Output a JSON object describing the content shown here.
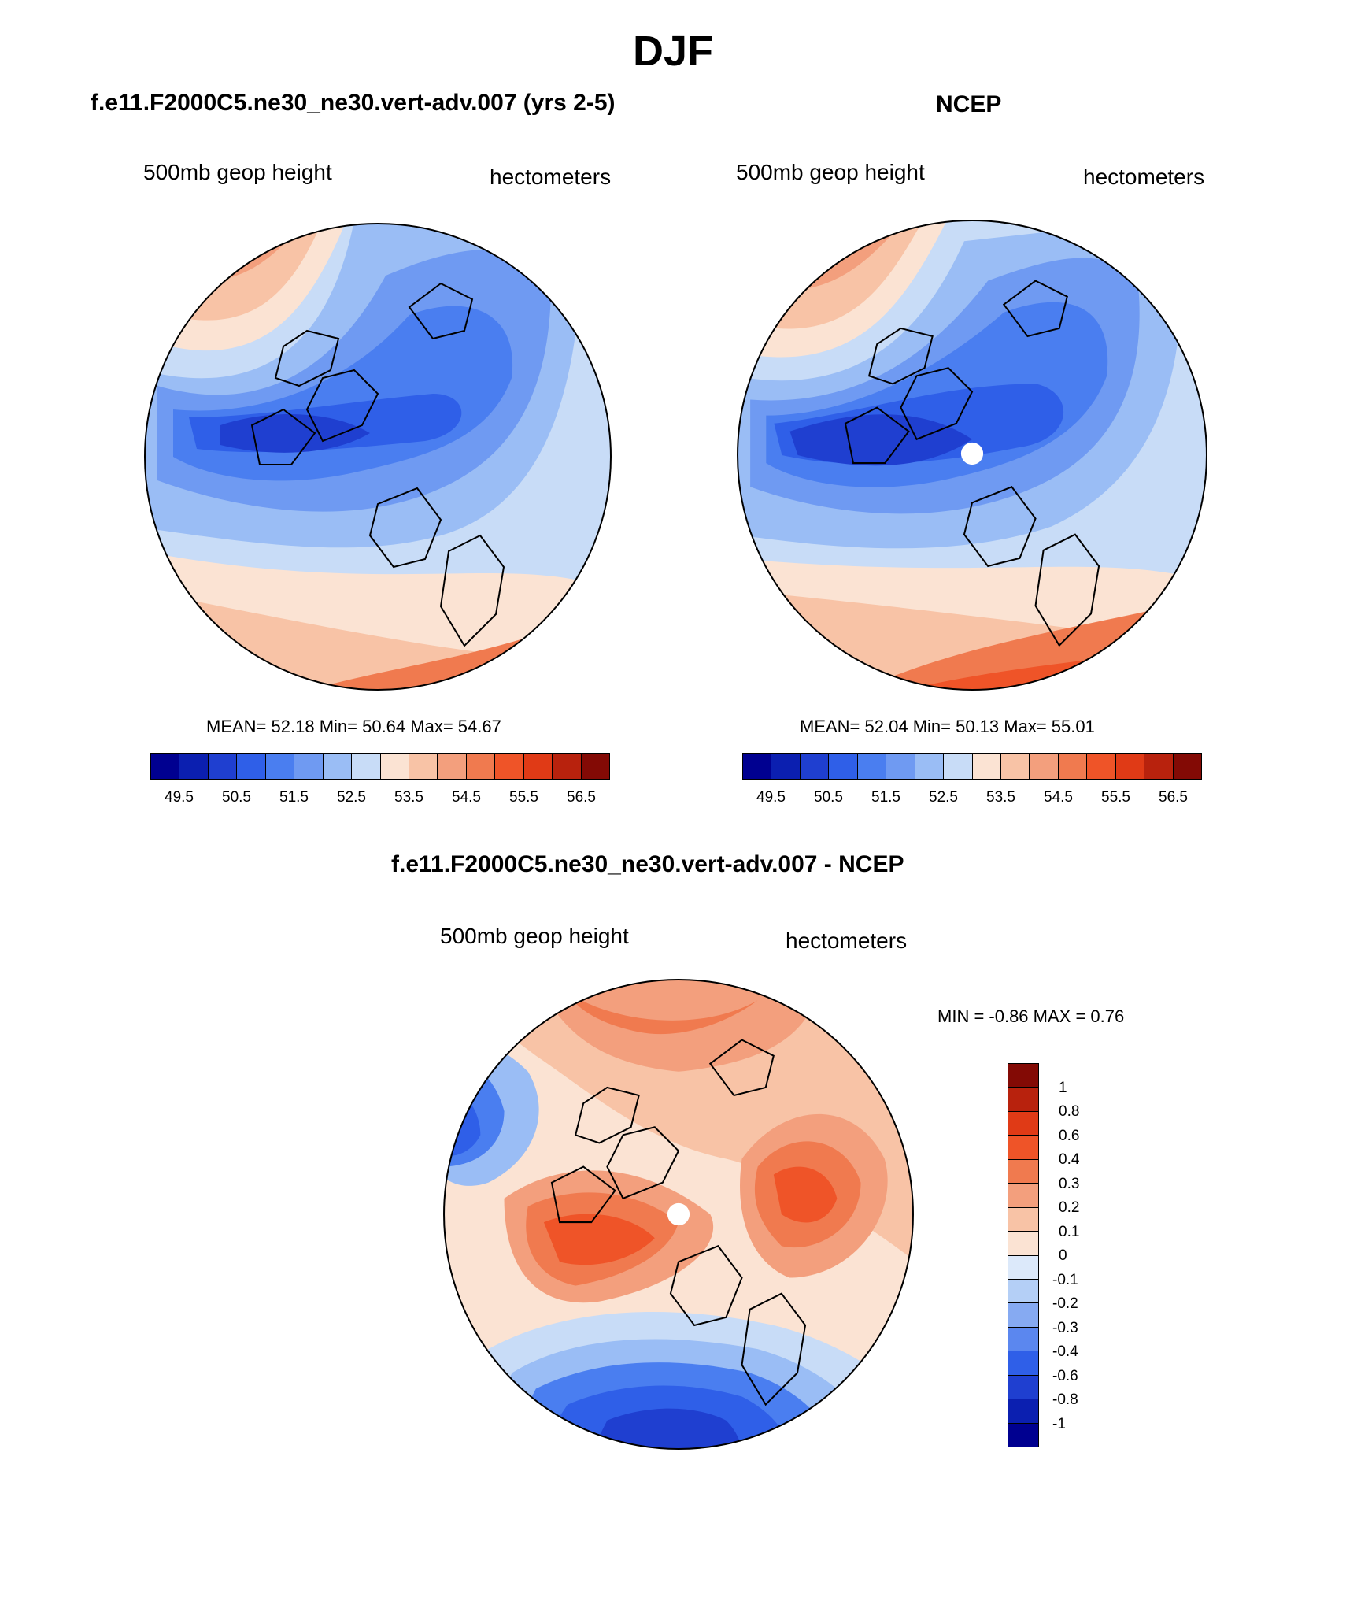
{
  "title": "DJF",
  "panels": {
    "model": {
      "title": "f.e11.F2000C5.ne30_ne30.vert-adv.007 (yrs 2-5)",
      "left_label": "500mb geop height",
      "right_label": "hectometers",
      "stats": "MEAN=  52.18  Min=  50.64  Max=  54.67"
    },
    "obs": {
      "title": "NCEP",
      "left_label": "500mb geop height",
      "right_label": "hectometers",
      "stats": "MEAN=  52.04  Min=  50.13  Max=  55.01"
    },
    "diff": {
      "title": "f.e11.F2000C5.ne30_ne30.vert-adv.007 - NCEP",
      "left_label": "500mb geop height",
      "right_label": "hectometers",
      "stats": "MIN =  -0.86 MAX =   0.76"
    }
  },
  "colorbar_main": {
    "colors": [
      "#000090",
      "#0b1fb0",
      "#1f3fd0",
      "#2f5fe8",
      "#4a7ef0",
      "#6f9af2",
      "#9abdf5",
      "#c8dcf7",
      "#fbe3d3",
      "#f8c3a6",
      "#f39f7d",
      "#f07a4f",
      "#ef5428",
      "#e03a16",
      "#b8220d",
      "#830a05"
    ],
    "tick_labels": [
      "49.5",
      "50.5",
      "51.5",
      "52.5",
      "53.5",
      "54.5",
      "55.5",
      "56.5"
    ]
  },
  "colorbar_diff": {
    "colors": [
      "#830a05",
      "#b8220d",
      "#e03a16",
      "#ef5428",
      "#f07a4f",
      "#f39f7d",
      "#f8c3a6",
      "#fbe3d3",
      "#dce9fa",
      "#b4cff6",
      "#86aaf2",
      "#5b87ef",
      "#2f5fe8",
      "#1f3fd0",
      "#0b1fb0",
      "#000090"
    ],
    "tick_labels": [
      "1",
      "0.8",
      "0.6",
      "0.4",
      "0.3",
      "0.2",
      "0.1",
      "0",
      "-0.1",
      "-0.2",
      "-0.3",
      "-0.4",
      "-0.6",
      "-0.8",
      "-1"
    ]
  }
}
